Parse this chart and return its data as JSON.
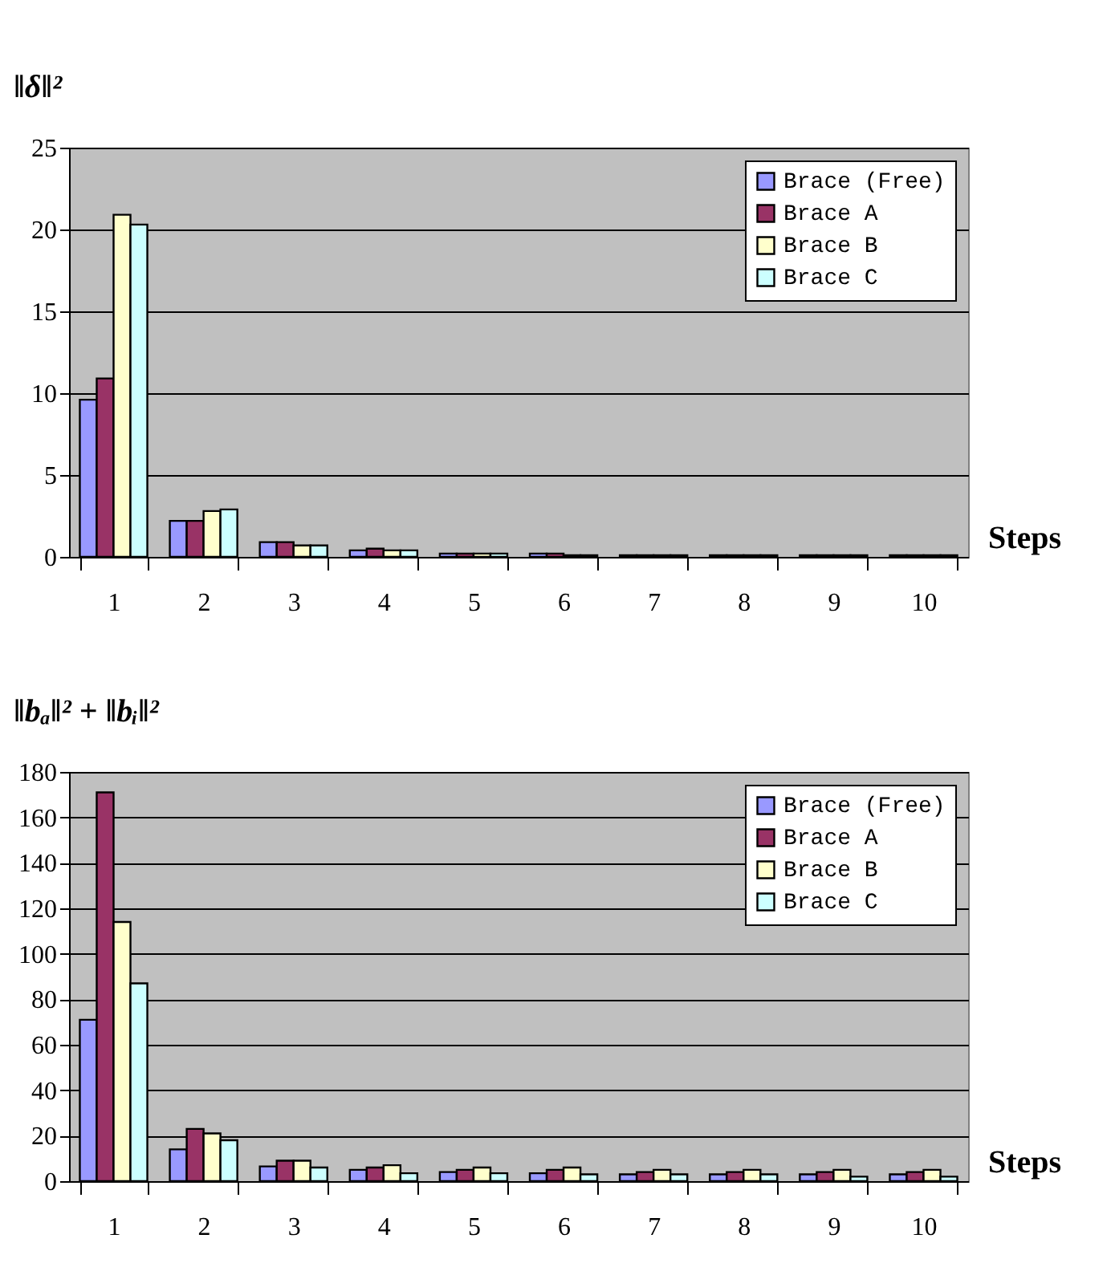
{
  "chart_data": [
    {
      "type": "bar",
      "ylabel": "‖δ‖²",
      "xlabel": "Steps",
      "categories": [
        "1",
        "2",
        "3",
        "4",
        "5",
        "6",
        "7",
        "8",
        "9",
        "10"
      ],
      "series": [
        {
          "name": "Brace (Free)",
          "color": "#9999ff",
          "values": [
            9.6,
            2.2,
            0.9,
            0.4,
            0.2,
            0.2,
            0.1,
            0.1,
            0.1,
            0.1
          ]
        },
        {
          "name": "Brace A",
          "color": "#993366",
          "values": [
            10.9,
            2.2,
            0.9,
            0.5,
            0.2,
            0.2,
            0.1,
            0.1,
            0.1,
            0.1
          ]
        },
        {
          "name": "Brace B",
          "color": "#ffffcc",
          "values": [
            20.9,
            2.8,
            0.7,
            0.4,
            0.2,
            0.1,
            0.1,
            0.1,
            0.1,
            0.1
          ]
        },
        {
          "name": "Brace C",
          "color": "#ccffff",
          "values": [
            20.3,
            2.9,
            0.7,
            0.4,
            0.2,
            0.1,
            0.1,
            0.1,
            0.1,
            0.1
          ]
        }
      ],
      "ylim": [
        0,
        25
      ],
      "yticks": [
        0,
        5,
        10,
        15,
        20,
        25
      ],
      "grid": "y",
      "legend": "top right"
    },
    {
      "type": "bar",
      "ylabel": "‖bₐ‖² + ‖bᵢ‖²",
      "xlabel": "Steps",
      "categories": [
        "1",
        "2",
        "3",
        "4",
        "5",
        "6",
        "7",
        "8",
        "9",
        "10"
      ],
      "series": [
        {
          "name": "Brace (Free)",
          "color": "#9999ff",
          "values": [
            71,
            14,
            6.5,
            5,
            4,
            3.5,
            3,
            3,
            3,
            3
          ]
        },
        {
          "name": "Brace A",
          "color": "#993366",
          "values": [
            171,
            23,
            9,
            6,
            5,
            5,
            4,
            4,
            4,
            4
          ]
        },
        {
          "name": "Brace B",
          "color": "#ffffcc",
          "values": [
            114,
            21,
            9,
            7,
            6,
            6,
            5,
            5,
            5,
            5
          ]
        },
        {
          "name": "Brace C",
          "color": "#ccffff",
          "values": [
            87,
            18,
            6,
            3.5,
            3.5,
            3,
            3,
            3,
            2,
            2
          ]
        }
      ],
      "ylim": [
        0,
        180
      ],
      "yticks": [
        0,
        20,
        40,
        60,
        80,
        100,
        120,
        140,
        160,
        180
      ],
      "grid": "y",
      "legend": "top right"
    }
  ]
}
